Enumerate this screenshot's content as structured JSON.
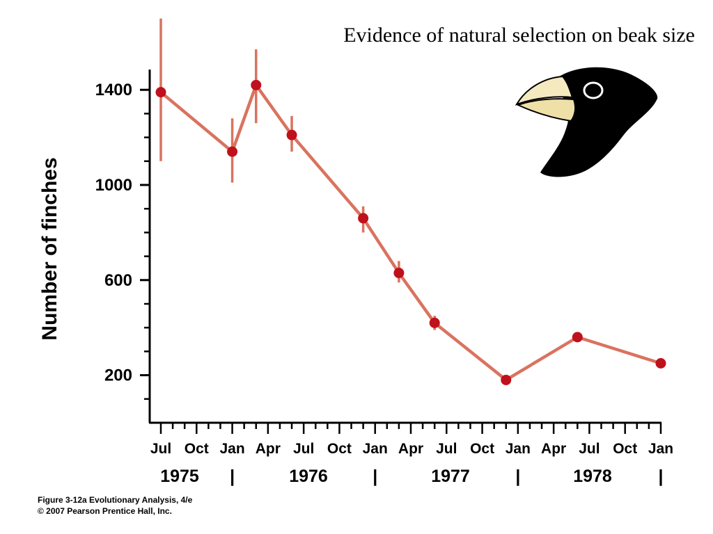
{
  "caption": {
    "line1": "Figure 3-12a  Evolutionary Analysis, 4/e",
    "line2": "© 2007 Pearson Prentice Hall, Inc."
  },
  "colors": {
    "series": "#d9735f",
    "marker": "#c0101c",
    "axis": "#000000"
  },
  "icons": {
    "finch": "finch-head-icon"
  },
  "chart_data": {
    "type": "line",
    "title": "Evidence of natural selection on beak size",
    "xlabel": "",
    "ylabel": "Number of finches",
    "x_ticks": [
      "Jul",
      "Oct",
      "Jan",
      "Apr",
      "Jul",
      "Oct",
      "Jan",
      "Apr",
      "Jul",
      "Oct",
      "Jan",
      "Apr",
      "Jul",
      "Oct",
      "Jan"
    ],
    "year_labels": [
      "1975",
      "1976",
      "1977",
      "1978"
    ],
    "year_separator": "|",
    "xlim": [
      "1975-07",
      "1979-01"
    ],
    "ylim": [
      0,
      1500
    ],
    "yticks": [
      200,
      600,
      1000,
      1400
    ],
    "grid": false,
    "series": [
      {
        "x": [
          "1975-07",
          "1976-01",
          "1976-03",
          "1976-06",
          "1976-12",
          "1977-03",
          "1977-06",
          "1977-12",
          "1978-06",
          "1979-01"
        ],
        "values": [
          1390,
          1140,
          1420,
          1210,
          860,
          630,
          420,
          180,
          360,
          250
        ],
        "err_low": [
          1100,
          1010,
          1260,
          1140,
          800,
          590,
          390,
          170,
          350,
          240
        ],
        "err_high": [
          1700,
          1280,
          1570,
          1290,
          910,
          680,
          450,
          190,
          375,
          260
        ]
      }
    ]
  }
}
